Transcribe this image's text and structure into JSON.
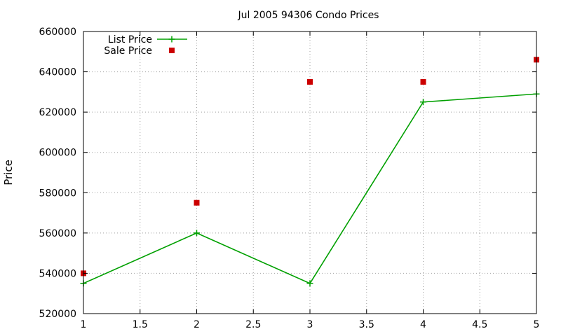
{
  "chart_data": {
    "type": "line",
    "title": "Jul 2005 94306 Condo Prices",
    "xlabel": "",
    "ylabel": "Price",
    "xlim": [
      1,
      5
    ],
    "ylim": [
      520000,
      660000
    ],
    "x_ticks": [
      "1",
      "1.5",
      "2",
      "2.5",
      "3",
      "3.5",
      "4",
      "4.5",
      "5"
    ],
    "y_ticks": [
      "520000",
      "540000",
      "560000",
      "580000",
      "600000",
      "620000",
      "640000",
      "660000"
    ],
    "grid": true,
    "legend_position": "top-left",
    "series": [
      {
        "name": "List Price",
        "style": "lines+points",
        "marker": "plus",
        "color": "#00a000",
        "x": [
          1,
          2,
          3,
          4,
          5
        ],
        "values": [
          535000,
          560000,
          535000,
          625000,
          629000
        ]
      },
      {
        "name": "Sale Price",
        "style": "points",
        "marker": "square",
        "color": "#cc0000",
        "x": [
          1,
          2,
          3,
          4,
          5
        ],
        "values": [
          540000,
          575000,
          635000,
          635000,
          646000
        ]
      }
    ]
  }
}
